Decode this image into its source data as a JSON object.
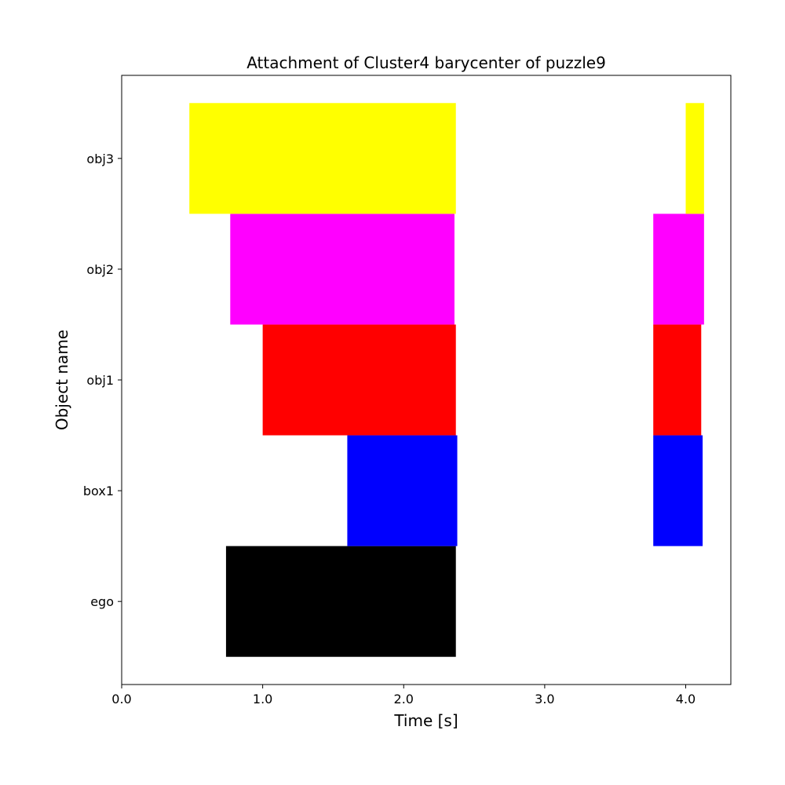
{
  "chart_data": {
    "type": "bar",
    "orientation": "horizontal-gantt",
    "title": "Attachment of Cluster4 barycenter of puzzle9",
    "xlabel": "Time [s]",
    "ylabel": "Object name",
    "xlim": [
      0.0,
      4.32
    ],
    "xticks": [
      0.0,
      1.0,
      2.0,
      3.0,
      4.0
    ],
    "xtick_labels": [
      "0.0",
      "1.0",
      "2.0",
      "3.0",
      "4.0"
    ],
    "categories": [
      "ego",
      "box1",
      "obj1",
      "obj2",
      "obj3"
    ],
    "grid": false,
    "series": [
      {
        "category": "ego",
        "color": "#000000",
        "intervals": [
          [
            0.74,
            2.37
          ]
        ]
      },
      {
        "category": "box1",
        "color": "#0000ff",
        "intervals": [
          [
            1.6,
            2.38
          ],
          [
            3.77,
            4.12
          ]
        ]
      },
      {
        "category": "obj1",
        "color": "#ff0000",
        "intervals": [
          [
            1.0,
            2.37
          ],
          [
            3.77,
            4.11
          ]
        ]
      },
      {
        "category": "obj2",
        "color": "#ff00ff",
        "intervals": [
          [
            0.77,
            2.36
          ],
          [
            3.77,
            4.13
          ]
        ]
      },
      {
        "category": "obj3",
        "color": "#ffff00",
        "intervals": [
          [
            0.48,
            2.37
          ],
          [
            4.0,
            4.13
          ]
        ]
      }
    ]
  }
}
